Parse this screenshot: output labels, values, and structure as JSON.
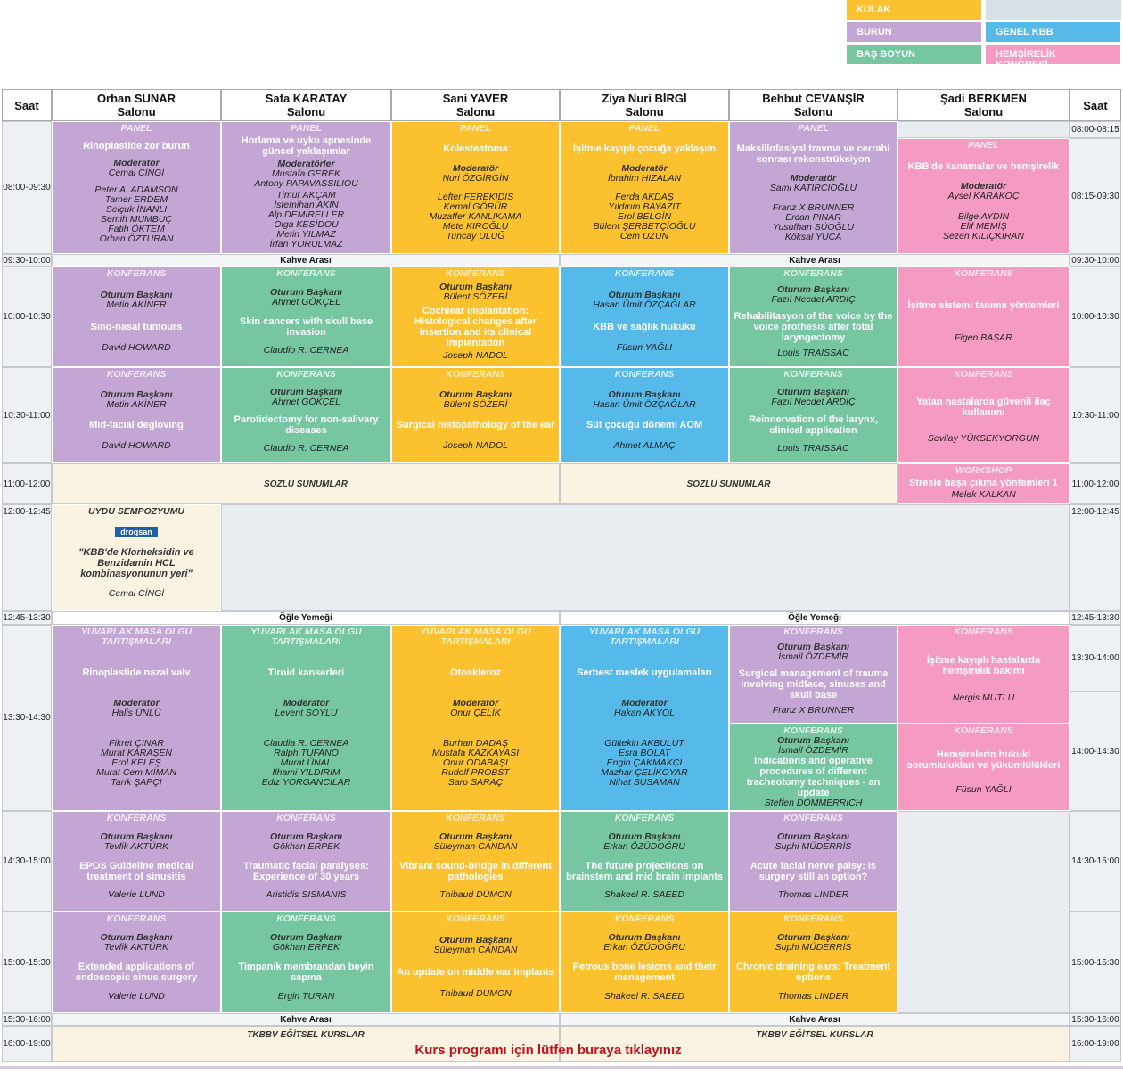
{
  "legend": [
    "KULAK",
    "BURUN",
    "BAŞ BOYUN",
    "GENEL KBB",
    "HEMŞİRELİK KONGRESİ"
  ],
  "header": {
    "time_left": "Saat",
    "halls": [
      "Orhan SUNAR\nSalonu",
      "Safa KARATAY\nSalonu",
      "Sani YAVER\nSalonu",
      "Ziya Nuri BİRGİ\nSalonu",
      "Behbut CEVANŞİR\nSalonu",
      "Şadi BERKMEN\nSalonu"
    ],
    "time_right": "Saat"
  },
  "times_left": [
    "08:00-09:30",
    "09:30-10:00",
    "10:00-10:30",
    "10:30-11:00",
    "11:00-12:00",
    "12:00-12:45",
    "12:45-13:30",
    "13:30-14:30",
    "14:30-15:00",
    "15:00-15:30",
    "15:30-16:00",
    "16:00-19:00"
  ],
  "times_right": [
    "08:00-08:15",
    "08:15-09:30",
    "09:30-10:00",
    "10:00-10:30",
    "10:30-11:00",
    "11:00-12:00",
    "12:00-12:45",
    "12:45-13:30",
    "13:30-14:00",
    "14:00-14:30",
    "14:30-15:00",
    "15:00-15:30",
    "15:30-16:00",
    "16:00-19:00"
  ],
  "sessions": [
    {
      "label": "PANEL",
      "title": "Rinoplastide zor burun",
      "role": "Moderatör",
      "people": [
        "Cemal CİNGİ"
      ],
      "speakers": [
        "Peter A. ADAMSON",
        "Tamer ERDEM",
        "Selçuk İNANLI",
        "Semih MUMBUÇ",
        "Fatih ÖKTEM",
        "Orhan ÖZTURAN"
      ]
    },
    {
      "label": "PANEL",
      "title": "Horlama ve uyku apnesinde güncel yaklaşımlar",
      "role": "Moderatörler",
      "people": [
        "Mustafa GEREK",
        "Antony PAPAVASSILIOU"
      ],
      "speakers": [
        "Timur AKÇAM",
        "İstemihan AKIN",
        "Alp DEMİRELLER",
        "Olga KESİDOU",
        "Metin YILMAZ",
        "İrfan YORULMAZ"
      ]
    },
    {
      "label": "PANEL",
      "title": "Kolesteatoma",
      "role": "Moderatör",
      "people": [
        "Nuri ÖZGİRGİN"
      ],
      "speakers": [
        "Lefter FEREKIDIS",
        "Kemal GÖRÜR",
        "Muzaffer KANLIKAMA",
        "Mete KIROĞLU",
        "Tuncay ULUĞ"
      ]
    },
    {
      "label": "PANEL",
      "title": "İşitme kayıplı çocuğa yaklaşım",
      "role": "Moderatör",
      "people": [
        "İbrahim HIZALAN"
      ],
      "speakers": [
        "Ferda AKDAŞ",
        "Yıldırım BAYAZIT",
        "Erol BELGİN",
        "Bülent ŞERBETÇİOĞLU",
        "Cem UZUN"
      ]
    },
    {
      "label": "PANEL",
      "title": "Maksillofasiyal travma ve cerrahi sonrası rekonstrüksiyon",
      "role": "Moderatör",
      "people": [
        "Sami KATIRCIOĞLU"
      ],
      "speakers": [
        "Franz X BRUNNER",
        "Ercan PINAR",
        "Yusufhan SÜOĞLU",
        "Köksal YUCA"
      ]
    },
    {
      "label": "PANEL",
      "title": "KBB'de kanamalar ve hemşirelik",
      "role": "Moderatör",
      "people": [
        "Aysel KARAKOÇ"
      ],
      "speakers": [
        "Bilge AYDIN",
        "Elif MEMİŞ",
        "Sezen KILIÇKIRAN"
      ]
    },
    {
      "label": "KONFERANS",
      "role": "Oturum Başkanı",
      "people": [
        "Metin AKİNER"
      ],
      "title": "Sino-nasal tumours",
      "speakers": [
        "David HOWARD"
      ]
    },
    {
      "label": "KONFERANS",
      "role": "Oturum Başkanı",
      "people": [
        "Ahmet GÖKÇEL"
      ],
      "title": "Skin cancers with skull base invasion",
      "speakers": [
        "Claudio R. CERNEA"
      ]
    },
    {
      "label": "KONFERANS",
      "role": "Oturum Başkanı",
      "people": [
        "Bülent SÖZERİ"
      ],
      "title": "Cochlear implantation: Histological changes after insertion and its clinical implantation",
      "speakers": [
        "Joseph NADOL"
      ]
    },
    {
      "label": "KONFERANS",
      "role": "Oturum Başkanı",
      "people": [
        "Hasan Ümit ÖZÇAĞLAR"
      ],
      "title": "KBB ve sağlık hukuku",
      "speakers": [
        "Füsun YAĞLI"
      ]
    },
    {
      "label": "KONFERANS",
      "role": "Oturum Başkanı",
      "people": [
        "Fazıl Necdet ARDIÇ"
      ],
      "title": "Rehabilitasyon of the voice by the voice prothesis after total laryngectomy",
      "speakers": [
        "Louis TRAISSAC"
      ]
    },
    {
      "label": "KONFERANS",
      "title": "İşitme sistemi tanıma yöntemleri",
      "speakers": [
        "Figen BAŞAR"
      ]
    },
    {
      "label": "KONFERANS",
      "role": "Oturum Başkanı",
      "people": [
        "Metin AKİNER"
      ],
      "title": "Mid-facial degloving",
      "speakers": [
        "David HOWARD"
      ]
    },
    {
      "label": "KONFERANS",
      "role": "Oturum Başkanı",
      "people": [
        "Ahmet GÖKÇEL"
      ],
      "title": "Parotidectomy for non-salivary diseases",
      "speakers": [
        "Claudio R. CERNEA"
      ]
    },
    {
      "label": "KONFERANS",
      "role": "Oturum Başkanı",
      "people": [
        "Bülent SÖZERİ"
      ],
      "title": "Surgical histopathology of the ear",
      "speakers": [
        "Joseph NADOL"
      ]
    },
    {
      "label": "KONFERANS",
      "role": "Oturum Başkanı",
      "people": [
        "Hasan Ümit ÖZÇAĞLAR"
      ],
      "title": "Süt çocuğu dönemi AOM",
      "speakers": [
        "Ahmet ALMAÇ"
      ]
    },
    {
      "label": "KONFERANS",
      "role": "Oturum Başkanı",
      "people": [
        "Fazıl Necdet ARDIÇ"
      ],
      "title": "Reinnervation of the larynx, clinical application",
      "speakers": [
        "Louis TRAISSAC"
      ]
    },
    {
      "label": "KONFERANS",
      "title": "Yatan hastalarda güvenli ilaç kullanımı",
      "speakers": [
        "Sevilay YÜKSEKYORGUN"
      ]
    },
    {
      "label": "WORKSHOP",
      "title": "Stresle başa çıkma yöntemleri 1",
      "speakers": [
        "Melek KALKAN"
      ]
    },
    {
      "label": "UYDU SEMPOZYUMU",
      "logo": "drogsan",
      "title": "\"KBB'de Klorheksidin ve Benzidamin HCL kombinasyonunun yeri\"",
      "speakers": [
        "Cemal CİNGİ"
      ]
    },
    {
      "label": "YUVARLAK MASA OLGU TARTIŞMALARI",
      "title": "Rinoplastide nazal valv",
      "role": "Moderatör",
      "people": [
        "Halis ÜNLÜ"
      ],
      "speakers": [
        "Fikret ÇINAR",
        "Murat KARAŞEN",
        "Erol KELEŞ",
        "Murat Cem MİMAN",
        "Tarık ŞAPÇI"
      ]
    },
    {
      "label": "YUVARLAK MASA OLGU TARTIŞMALARI",
      "title": "Tiroid kanserleri",
      "role": "Moderatör",
      "people": [
        "Levent SOYLU"
      ],
      "speakers": [
        "Claudia R. CERNEA",
        "Ralph TUFANO",
        "Murat ÜNAL",
        "İlhami YILDIRIM",
        "Ediz YORGANCILAR"
      ]
    },
    {
      "label": "YUVARLAK MASA OLGU TARTIŞMALARI",
      "title": "Otoskleroz",
      "role": "Moderatör",
      "people": [
        "Onur ÇELİK"
      ],
      "speakers": [
        "Burhan DADAŞ",
        "Mustafa KAZKAYASI",
        "Onur ODABAŞI",
        "Rudolf PROBST",
        "Sarp SARAÇ"
      ]
    },
    {
      "label": "YUVARLAK MASA OLGU TARTIŞMALARI",
      "title": "Serbest meslek uygulamaları",
      "role": "Moderatör",
      "people": [
        "Hakan AKYOL"
      ],
      "speakers": [
        "Gültekin AKBULUT",
        "Esra BOLAT",
        "Engin ÇAKMAKÇI",
        "Mazhar ÇELİKOYAR",
        "Nihat SUSAMAN"
      ]
    },
    {
      "label": "KONFERANS",
      "role": "Oturum Başkanı",
      "people": [
        "İsmail ÖZDEMİR"
      ],
      "title": "Surgical management of trauma involving midface, sinuses and skull base",
      "speakers": [
        "Franz X BRUNNER"
      ]
    },
    {
      "label": "KONFERANS",
      "role": "Oturum Başkanı",
      "people": [
        "İsmail ÖZDEMİR"
      ],
      "title": "Indications and operative procedures of different tracheotomy techniques - an update",
      "speakers": [
        "Steffen DOMMERRICH"
      ]
    },
    {
      "label": "KONFERANS",
      "title": "İşitme kayıplı hastalarda hemşirelik bakımı",
      "speakers": [
        "Nergis MUTLU"
      ]
    },
    {
      "label": "KONFERANS",
      "title": "Hemşirelerin hukuki sorumlulukları ve yükümlülükleri",
      "speakers": [
        "Füsun YAĞLI"
      ]
    },
    {
      "label": "KONFERANS",
      "role": "Oturum Başkanı",
      "people": [
        "Tevfik AKTÜRK"
      ],
      "title": "EPOS Guideline medical treatment of sinusitis",
      "speakers": [
        "Valerie LUND"
      ]
    },
    {
      "label": "KONFERANS",
      "role": "Oturum Başkanı",
      "people": [
        "Gökhan ERPEK"
      ],
      "title": "Traumatic facial paralyses: Experience of 30 years",
      "speakers": [
        "Aristidis SISMANIS"
      ]
    },
    {
      "label": "KONFERANS",
      "role": "Oturum Başkanı",
      "people": [
        "Süleyman CANDAN"
      ],
      "title": "Vibrant sound-bridge in different pathologies",
      "speakers": [
        "Thibaud DUMON"
      ]
    },
    {
      "label": "KONFERANS",
      "role": "Oturum Başkanı",
      "people": [
        "Erkan ÖZÜDOĞRU"
      ],
      "title": "The future projections on brainstem and mid brain implants",
      "speakers": [
        "Shakeel R. SAEED"
      ]
    },
    {
      "label": "KONFERANS",
      "role": "Oturum Başkanı",
      "people": [
        "Suphi MÜDERRİS"
      ],
      "title": "Acute facial nerve palsy: Is surgery still an option?",
      "speakers": [
        "Thomas LINDER"
      ]
    },
    {
      "label": "KONFERANS",
      "role": "Oturum Başkanı",
      "people": [
        "Tevfik AKTÜRK"
      ],
      "title": "Extended applications of endoscopic sinus surgery",
      "speakers": [
        "Valerie LUND"
      ]
    },
    {
      "label": "KONFERANS",
      "role": "Oturum Başkanı",
      "people": [
        "Gökhan ERPEK"
      ],
      "title": "Timpanik membrandan beyin sapına",
      "speakers": [
        "Ergin TURAN"
      ]
    },
    {
      "label": "KONFERANS",
      "role": "Oturum Başkanı",
      "people": [
        "Süleyman CANDAN"
      ],
      "title": "An update on middle ear implants",
      "speakers": [
        "Thibaud DUMON"
      ]
    },
    {
      "label": "KONFERANS",
      "role": "Oturum Başkanı",
      "people": [
        "Erkan ÖZÜDOĞRU"
      ],
      "title": "Petrous bone lesions and their management",
      "speakers": [
        "Shakeel R. SAEED"
      ]
    },
    {
      "label": "KONFERANS",
      "role": "Oturum Başkanı",
      "people": [
        "Suphi MÜDERRİS"
      ],
      "title": "Chronic draining ears: Treatment options",
      "speakers": [
        "Thomas LINDER"
      ]
    }
  ],
  "breaks": [
    "Kahve Arası",
    "Kahve Arası",
    "SÖZLÜ SUNUMLAR",
    "SÖZLÜ SUNUMLAR",
    "Öğle Yemeği",
    "Öğle Yemeği",
    "Kahve Arası",
    "Kahve Arası",
    "TKBBV EĞİTSEL KURSLAR",
    "TKBBV EĞİTSEL KURSLAR"
  ],
  "link": "Kurs programı için lütfen buraya tıklayınız"
}
